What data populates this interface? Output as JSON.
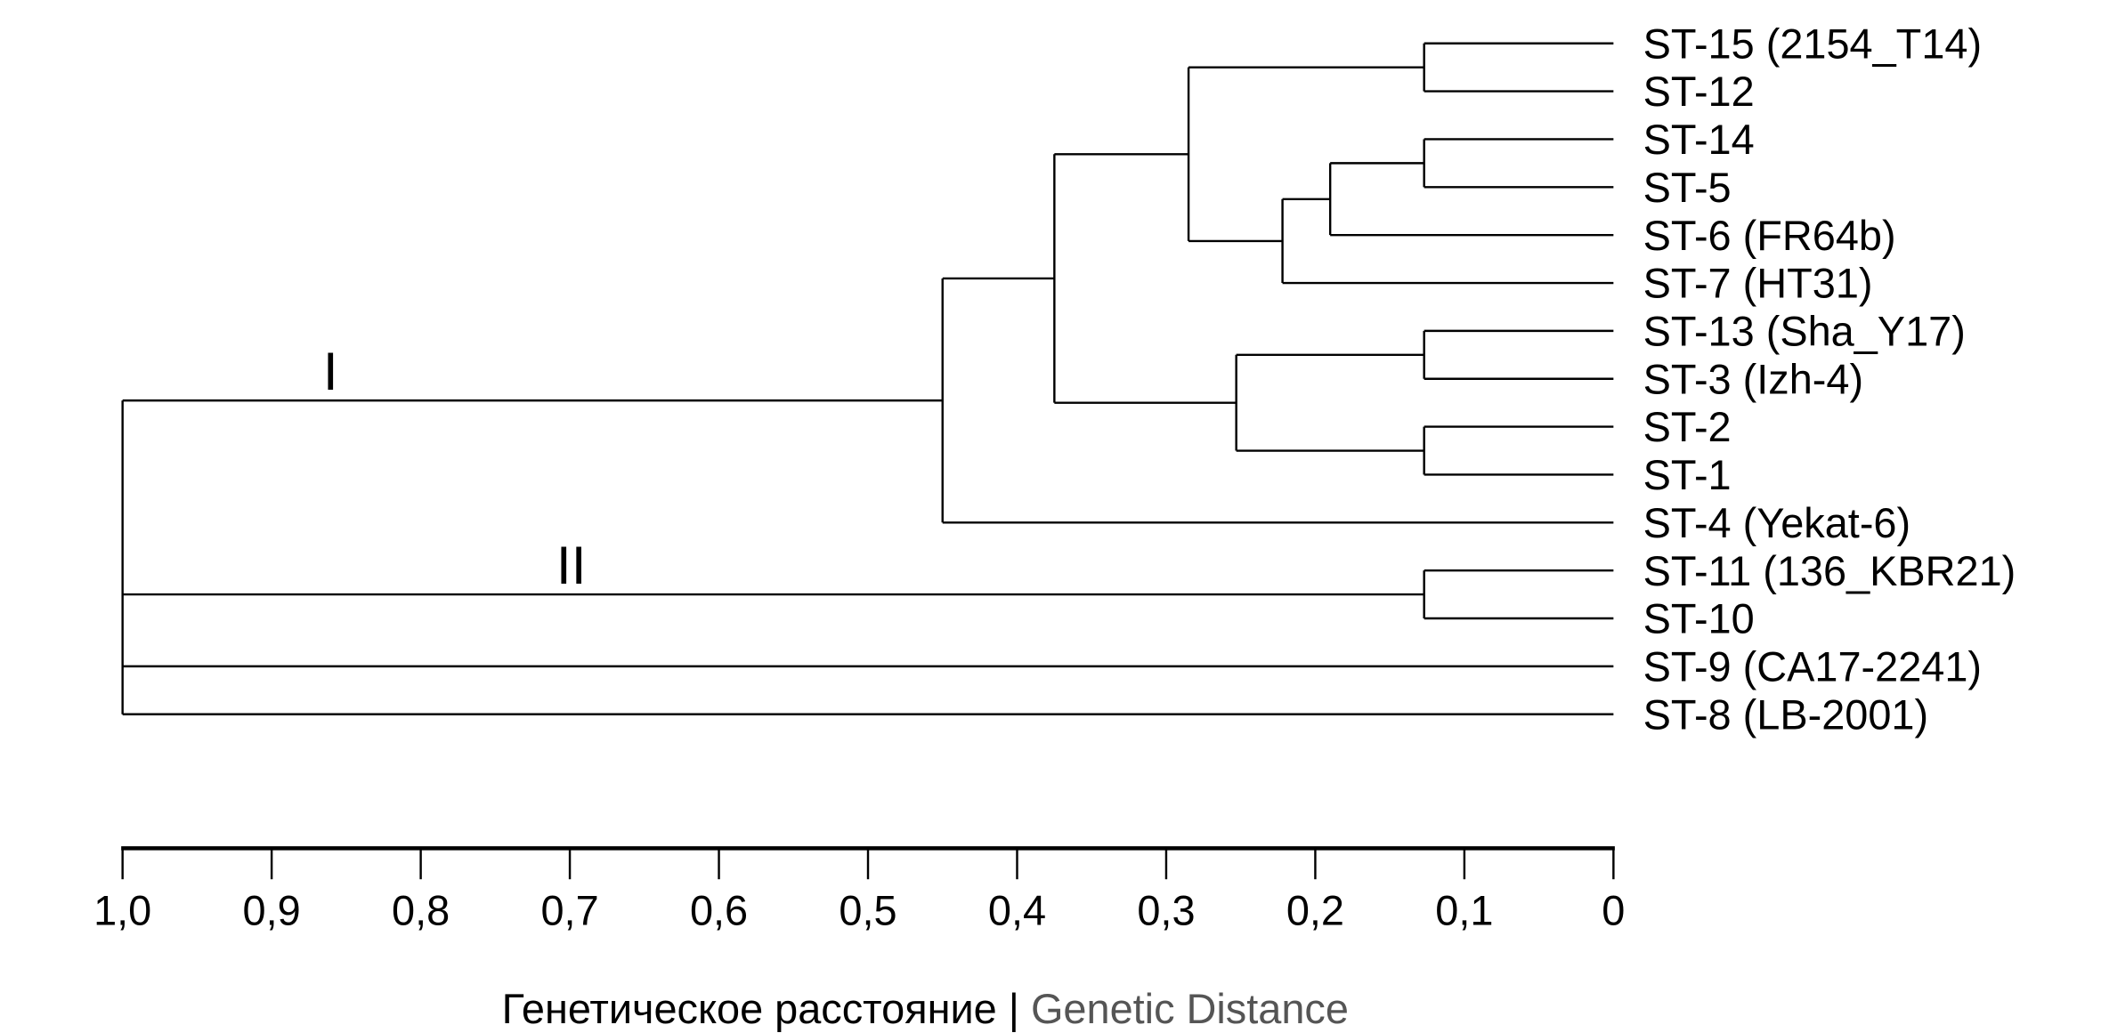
{
  "chart_data": {
    "type": "dendrogram",
    "title": "",
    "xlabel_ru": "Генетическое расстояние",
    "xlabel_sep": "|",
    "xlabel_en": "Genetic Distance",
    "xlim": [
      1.0,
      0
    ],
    "ticks": [
      1.0,
      0.9,
      0.8,
      0.7,
      0.6,
      0.5,
      0.4,
      0.3,
      0.2,
      0.1,
      0
    ],
    "tick_labels": [
      "1,0",
      "0,9",
      "0,8",
      "0,7",
      "0,6",
      "0,5",
      "0,4",
      "0,3",
      "0,2",
      "0,1",
      "0"
    ],
    "leaves": [
      "ST-15 (2154_T14)",
      "ST-12",
      "ST-14",
      "ST-5",
      "ST-6 (FR64b)",
      "ST-7 (HT31)",
      "ST-13 (Sha_Y17)",
      "ST-3 (Izh-4)",
      "ST-2",
      "ST-1",
      "ST-4 (Yekat-6)",
      "ST-11 (136_KBR21)",
      "ST-10",
      "ST-9 (CA17-2241)",
      "ST-8 (LB-2001)"
    ],
    "cluster_labels": [
      "I",
      "II"
    ],
    "tree": {
      "h": 1.0,
      "children": [
        {
          "h": 0.45,
          "cluster": 0,
          "children": [
            {
              "h": 0.375,
              "children": [
                {
                  "h": 0.285,
                  "children": [
                    {
                      "h": 0.127,
                      "children": [
                        {
                          "leaf": 0
                        },
                        {
                          "leaf": 1
                        }
                      ]
                    },
                    {
                      "h": 0.222,
                      "children": [
                        {
                          "h": 0.19,
                          "children": [
                            {
                              "h": 0.127,
                              "children": [
                                {
                                  "leaf": 2
                                },
                                {
                                  "leaf": 3
                                }
                              ]
                            },
                            {
                              "leaf": 4
                            }
                          ]
                        },
                        {
                          "leaf": 5
                        }
                      ]
                    }
                  ]
                },
                {
                  "h": 0.253,
                  "children": [
                    {
                      "h": 0.127,
                      "children": [
                        {
                          "leaf": 6
                        },
                        {
                          "leaf": 7
                        }
                      ]
                    },
                    {
                      "h": 0.127,
                      "children": [
                        {
                          "leaf": 8
                        },
                        {
                          "leaf": 9
                        }
                      ]
                    }
                  ]
                }
              ]
            },
            {
              "leaf": 10
            }
          ]
        },
        {
          "h": 0.127,
          "cluster": 1,
          "children": [
            {
              "leaf": 11
            },
            {
              "leaf": 12
            }
          ]
        },
        {
          "leaf": 13
        },
        {
          "leaf": 14
        }
      ]
    }
  }
}
